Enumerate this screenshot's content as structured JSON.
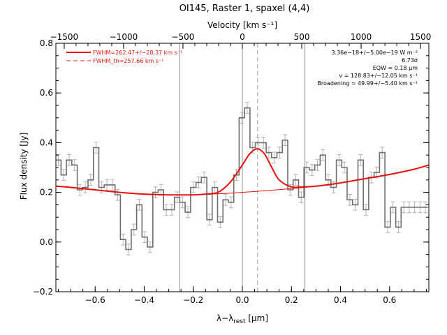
{
  "chart_data": {
    "type": "line",
    "title": "OI145, Raster 1, spaxel (4,4)",
    "xlabel": "λ−λrest [μm]",
    "xlabel_main": "λ−λ",
    "xlabel_sub": "rest",
    "xlabel_unit": " [μm]",
    "top_xlabel": "Velocity [km s⁻¹]",
    "ylabel": "Flux density [Jy]",
    "xlim": [
      -0.76,
      0.76
    ],
    "ylim": [
      -0.2,
      0.8
    ],
    "top_xlim": [
      -1570,
      1570
    ],
    "x_ticks": [
      -0.6,
      -0.4,
      -0.2,
      0.0,
      0.2,
      0.4,
      0.6
    ],
    "x_tick_labels": [
      "−0.6",
      "−0.4",
      "−0.2",
      "0.0",
      "0.2",
      "0.4",
      "0.6"
    ],
    "top_ticks": [
      -1500,
      -1000,
      -500,
      0,
      500,
      1000,
      1500
    ],
    "top_tick_labels": [
      "−1500",
      "−1000",
      "−500",
      "0",
      "500",
      "1000",
      "1500"
    ],
    "y_ticks": [
      -0.2,
      0.0,
      0.2,
      0.4,
      0.6,
      0.8
    ],
    "y_tick_labels": [
      "−0.2",
      "0.0",
      "0.2",
      "0.4",
      "0.6",
      "0.8"
    ],
    "vertical_lines_solid": [
      -0.255,
      0.0,
      0.255
    ],
    "vertical_line_dashed": 0.062,
    "legend": [
      {
        "label": "FWHM=262.47+/−28.37 km s⁻¹",
        "style": "solid"
      },
      {
        "label": "FWHM_th=257.66 km s⁻¹",
        "style": "dashed"
      }
    ],
    "annotations": [
      "3.36e−18+/−5.00e−19 W m⁻²",
      "6.73σ",
      "EQW = 0.18 μm",
      "v = 128.83+/−12.05 km s⁻¹",
      "Broadening = 49.99+/−5.40 km s⁻¹"
    ],
    "colors": {
      "fit": "#e8100c",
      "data": "#6f6f6f",
      "errorbar": "#b3b3b3",
      "vlines": "#8f8f8f"
    },
    "series": [
      {
        "name": "Flux density",
        "x": [
          -0.75,
          -0.728,
          -0.706,
          -0.684,
          -0.662,
          -0.64,
          -0.618,
          -0.596,
          -0.574,
          -0.552,
          -0.53,
          -0.508,
          -0.486,
          -0.464,
          -0.442,
          -0.42,
          -0.398,
          -0.376,
          -0.354,
          -0.332,
          -0.31,
          -0.288,
          -0.266,
          -0.244,
          -0.222,
          -0.2,
          -0.178,
          -0.156,
          -0.134,
          -0.112,
          -0.09,
          -0.068,
          -0.046,
          -0.024,
          -0.002,
          0.02,
          0.042,
          0.064,
          0.086,
          0.108,
          0.13,
          0.152,
          0.174,
          0.196,
          0.218,
          0.24,
          0.262,
          0.284,
          0.306,
          0.328,
          0.35,
          0.372,
          0.394,
          0.416,
          0.438,
          0.46,
          0.482,
          0.504,
          0.526,
          0.548,
          0.57,
          0.592,
          0.614,
          0.636,
          0.658,
          0.68,
          0.702,
          0.724,
          0.746
        ],
        "y": [
          0.33,
          0.27,
          0.33,
          0.31,
          0.21,
          0.22,
          0.25,
          0.38,
          0.22,
          0.23,
          0.23,
          0.19,
          0.01,
          -0.03,
          0.05,
          0.15,
          0.02,
          -0.02,
          0.2,
          0.21,
          0.13,
          0.13,
          0.18,
          0.16,
          0.12,
          0.22,
          0.24,
          0.26,
          0.09,
          0.22,
          0.08,
          0.17,
          0.16,
          0.27,
          0.5,
          0.54,
          0.38,
          0.4,
          0.4,
          0.36,
          0.34,
          0.36,
          0.41,
          0.21,
          0.25,
          0.18,
          0.3,
          0.29,
          0.31,
          0.35,
          0.25,
          0.22,
          0.33,
          0.3,
          0.17,
          0.15,
          0.33,
          0.13,
          0.26,
          0.28,
          0.36,
          0.06,
          0.14,
          0.06,
          0.14,
          0.14,
          0.14,
          0.14,
          0.14
        ],
        "yerr": [
          0.022,
          0.022,
          0.022,
          0.022,
          0.022,
          0.022,
          0.022,
          0.022,
          0.022,
          0.022,
          0.022,
          0.022,
          0.022,
          0.022,
          0.022,
          0.022,
          0.022,
          0.022,
          0.022,
          0.022,
          0.022,
          0.022,
          0.022,
          0.022,
          0.022,
          0.022,
          0.022,
          0.022,
          0.022,
          0.022,
          0.022,
          0.022,
          0.022,
          0.022,
          0.022,
          0.022,
          0.022,
          0.022,
          0.022,
          0.022,
          0.022,
          0.022,
          0.022,
          0.022,
          0.022,
          0.022,
          0.022,
          0.022,
          0.022,
          0.022,
          0.022,
          0.022,
          0.022,
          0.022,
          0.022,
          0.022,
          0.022,
          0.022,
          0.022,
          0.022,
          0.022,
          0.022,
          0.022,
          0.022,
          0.022,
          0.022,
          0.022,
          0.022,
          0.022
        ]
      },
      {
        "name": "FWHM fit",
        "x": [
          -0.76,
          -0.7,
          -0.6,
          -0.5,
          -0.4,
          -0.3,
          -0.2,
          -0.15,
          -0.1,
          -0.05,
          0.0,
          0.03,
          0.06,
          0.09,
          0.12,
          0.15,
          0.2,
          0.25,
          0.3,
          0.4,
          0.5,
          0.6,
          0.7,
          0.76
        ],
        "y": [
          0.225,
          0.22,
          0.21,
          0.2,
          0.193,
          0.19,
          0.19,
          0.193,
          0.2,
          0.24,
          0.31,
          0.355,
          0.375,
          0.355,
          0.3,
          0.25,
          0.222,
          0.222,
          0.225,
          0.238,
          0.255,
          0.272,
          0.293,
          0.31
        ]
      },
      {
        "name": "continuum",
        "x": [
          -0.76,
          -0.6,
          -0.4,
          -0.3,
          -0.2,
          0.0,
          0.2,
          0.3,
          0.4,
          0.5,
          0.6,
          0.7,
          0.76
        ],
        "y": [
          0.225,
          0.21,
          0.193,
          0.19,
          0.19,
          0.2,
          0.215,
          0.225,
          0.238,
          0.255,
          0.272,
          0.293,
          0.31
        ]
      }
    ]
  }
}
